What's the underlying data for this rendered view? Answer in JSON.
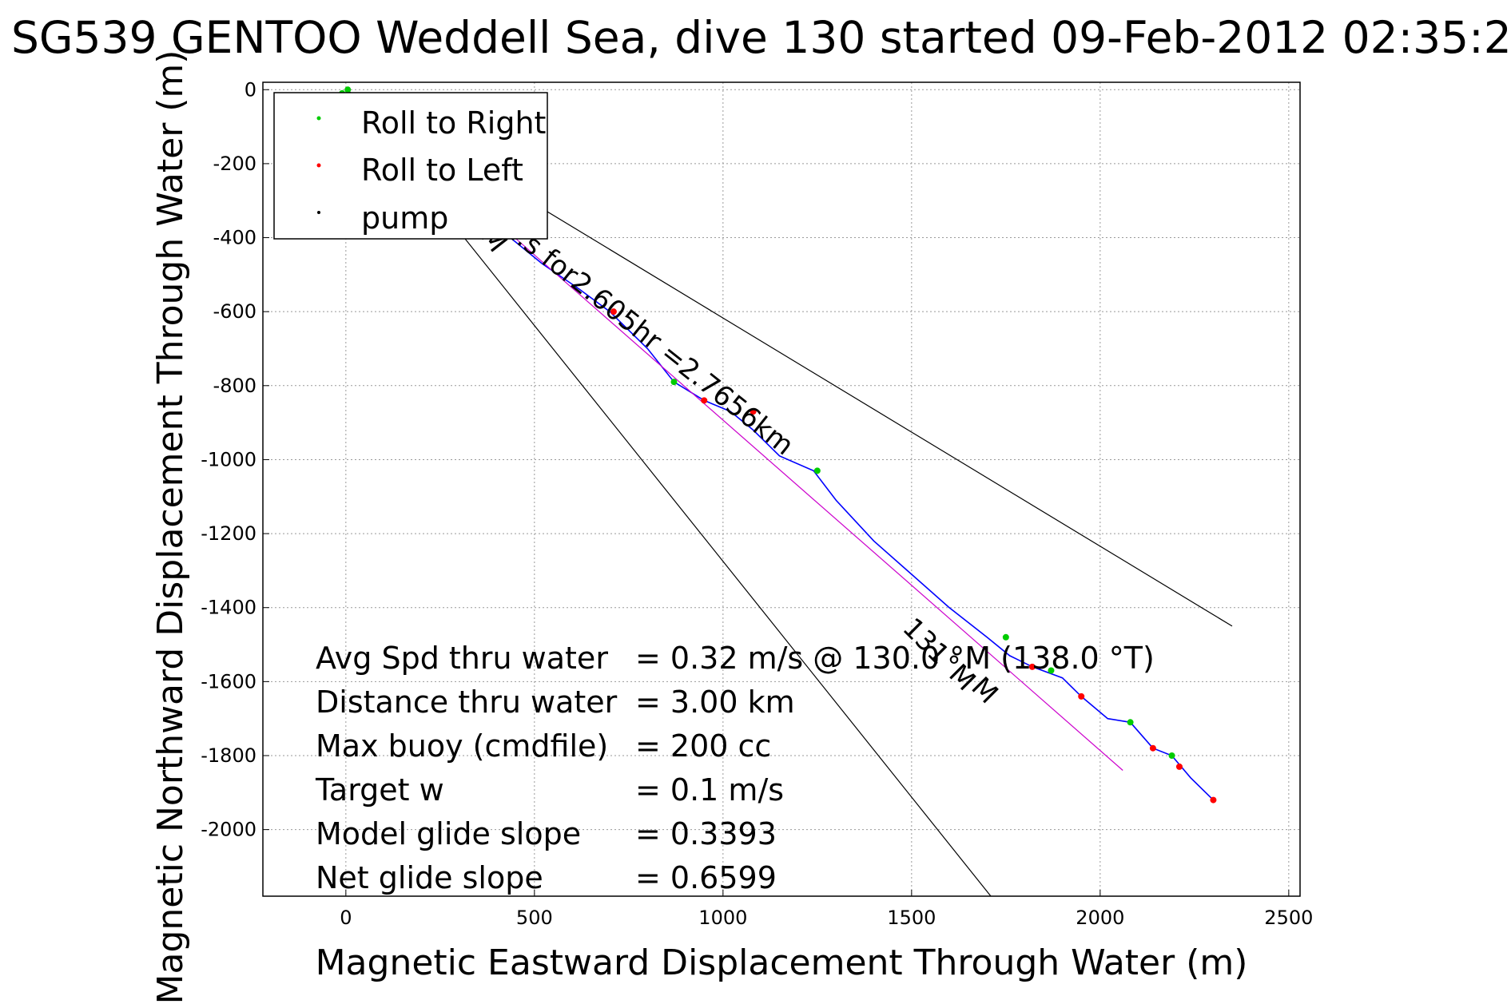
{
  "chart_data": {
    "type": "line",
    "title": "SG539 GENTOO Weddell Sea, dive 130 started 09-Feb-2012 02:35:2",
    "xlabel": "Magnetic Eastward Displacement Through Water (m)",
    "ylabel": "Magnetic Northward Displacement Through Water (m)",
    "xlim": [
      -220,
      2530
    ],
    "ylim": [
      -2180,
      20
    ],
    "xticks": [
      0,
      500,
      1000,
      1500,
      2000,
      2500
    ],
    "yticks": [
      0,
      -200,
      -400,
      -600,
      -800,
      -1000,
      -1200,
      -1400,
      -1600,
      -1800,
      -2000
    ],
    "grid": true,
    "legend": {
      "placement": "top-left",
      "entries": [
        {
          "label": "Roll to Right",
          "color": "#00cc00"
        },
        {
          "label": "Roll to Left",
          "color": "#ff0000"
        },
        {
          "label": "pump",
          "color": "#000000"
        }
      ]
    },
    "series": [
      {
        "color": "#0000ff",
        "x": [
          0,
          100,
          200,
          300,
          400,
          520,
          620,
          700,
          800,
          870,
          950,
          1020,
          1080,
          1150,
          1240,
          1300,
          1400,
          1500,
          1600,
          1700,
          1760,
          1820,
          1900,
          1950,
          2020,
          2080,
          2140,
          2190,
          2240,
          2300
        ],
        "y": [
          0,
          -90,
          -180,
          -270,
          -370,
          -470,
          -540,
          -600,
          -700,
          -790,
          -840,
          -870,
          -920,
          -990,
          -1030,
          -1110,
          -1220,
          -1310,
          -1400,
          -1480,
          -1530,
          -1560,
          -1590,
          -1640,
          -1700,
          -1710,
          -1780,
          -1800,
          -1860,
          -1920
        ]
      },
      {
        "color": "#cc00cc",
        "x": [
          0,
          2060
        ],
        "y": [
          0,
          -1840
        ]
      },
      {
        "color": "#000000",
        "x": [
          0,
          1710
        ],
        "y": [
          0,
          -2180
        ]
      },
      {
        "color": "#000000",
        "x": [
          0,
          2350
        ],
        "y": [
          0,
          -1450
        ]
      }
    ],
    "markers": {
      "roll_right": {
        "x": [
          -10,
          5,
          870,
          1250,
          1750,
          1870,
          2080,
          2190
        ],
        "y": [
          -10,
          0,
          -790,
          -1030,
          -1480,
          -1570,
          -1710,
          -1800
        ]
      },
      "roll_left": {
        "x": [
          710,
          950,
          1080,
          1820,
          1950,
          2140,
          2210,
          2300
        ],
        "y": [
          -600,
          -840,
          -870,
          -1560,
          -1640,
          -1780,
          -1830,
          -1920
        ]
      }
    },
    "annotations": {
      "track_label": "...s for2.605hr =2.7656km",
      "left_heading": "M",
      "right_heading": "131°M",
      "right_heading_overlap": "M"
    },
    "stats": [
      {
        "label": "Avg Spd thru water",
        "value": "=  0.32 m/s @ 130.0 °M (138.0 °T)"
      },
      {
        "label": "Distance thru water",
        "value": "=  3.00 km"
      },
      {
        "label": "Max buoy (cmdfile)",
        "value": "= 200 cc"
      },
      {
        "label": "Target w",
        "value": "= 0.1 m/s"
      },
      {
        "label": "Model glide slope",
        "value": "= 0.3393"
      },
      {
        "label": "Net glide slope",
        "value": "= 0.6599"
      }
    ]
  }
}
